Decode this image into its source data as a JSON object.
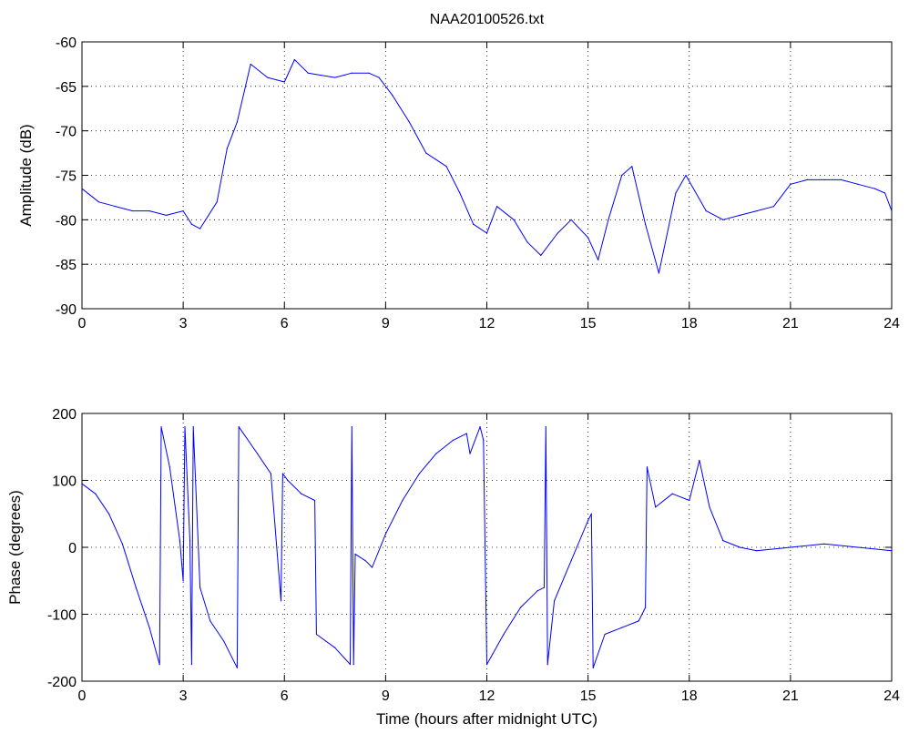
{
  "colors": {
    "series": "#0000ff",
    "axes": "#000000",
    "background": "#ffffff"
  },
  "chart_data": [
    {
      "type": "line",
      "title": "NAA20100526.txt",
      "xlabel": "",
      "ylabel": "Amplitude (dB)",
      "xlim": [
        0,
        24
      ],
      "ylim": [
        -90,
        -60
      ],
      "xticks": [
        0,
        3,
        6,
        9,
        12,
        15,
        18,
        21,
        24
      ],
      "yticks": [
        -90,
        -85,
        -80,
        -75,
        -70,
        -65,
        -60
      ],
      "grid": true,
      "x": [
        0,
        0.5,
        1,
        1.5,
        2,
        2.5,
        3,
        3.25,
        3.5,
        4,
        4.3,
        4.6,
        5,
        5.5,
        6,
        6.3,
        6.7,
        7.5,
        8,
        8.5,
        8.8,
        9.2,
        9.7,
        10.2,
        10.8,
        11.2,
        11.6,
        12,
        12.3,
        12.8,
        13.2,
        13.6,
        14.1,
        14.5,
        15,
        15.3,
        15.6,
        16,
        16.3,
        16.7,
        17.1,
        17.6,
        17.9,
        18.5,
        19,
        19.5,
        20,
        20.5,
        21,
        21.5,
        22,
        22.5,
        23,
        23.5,
        23.8,
        24
      ],
      "values": [
        -76.5,
        -78,
        -78.5,
        -79,
        -79,
        -79.5,
        -79,
        -80.5,
        -81,
        -78,
        -72,
        -69,
        -62.5,
        -64,
        -64.5,
        -62,
        -63.5,
        -64,
        -63.5,
        -63.5,
        -64,
        -66,
        -69,
        -72.5,
        -74,
        -77,
        -80.5,
        -81.5,
        -78.5,
        -80,
        -82.5,
        -84,
        -81.5,
        -80,
        -82,
        -84.5,
        -80,
        -75,
        -74,
        -80.5,
        -86,
        -77,
        -75,
        -79,
        -80,
        -79.5,
        -79,
        -78.5,
        -76,
        -75.5,
        -75.5,
        -75.5,
        -76,
        -76.5,
        -77,
        -79
      ]
    },
    {
      "type": "line",
      "title": "",
      "xlabel": "Time (hours after midnight UTC)",
      "ylabel": "Phase (degrees)",
      "xlim": [
        0,
        24
      ],
      "ylim": [
        -200,
        200
      ],
      "xticks": [
        0,
        3,
        6,
        9,
        12,
        15,
        18,
        21,
        24
      ],
      "yticks": [
        -200,
        -100,
        0,
        100,
        200
      ],
      "grid": true,
      "x": [
        0,
        0.4,
        0.8,
        1.2,
        1.6,
        2,
        2.3,
        2.35,
        2.6,
        2.9,
        3.0,
        3.05,
        3.2,
        3.25,
        3.3,
        3.5,
        3.8,
        4.2,
        4.6,
        4.65,
        5.2,
        5.6,
        5.9,
        5.95,
        6.1,
        6.5,
        6.9,
        6.95,
        7.5,
        7.95,
        8.0,
        8.05,
        8.1,
        8.4,
        8.6,
        9.0,
        9.5,
        10.0,
        10.5,
        11.0,
        11.4,
        11.5,
        11.8,
        11.9,
        12.0,
        12.5,
        13.0,
        13.5,
        13.7,
        13.75,
        13.8,
        14.0,
        14.5,
        15.0,
        15.1,
        15.15,
        15.5,
        16.0,
        16.5,
        16.7,
        16.75,
        17.0,
        17.5,
        18.0,
        18.3,
        18.6,
        19.0,
        19.5,
        20.0,
        21.0,
        22.0,
        23.0,
        24.0
      ],
      "values": [
        95,
        80,
        50,
        5,
        -60,
        -120,
        -175,
        180,
        120,
        10,
        -50,
        180,
        10,
        -175,
        180,
        -60,
        -110,
        -140,
        -180,
        180,
        140,
        110,
        -80,
        110,
        100,
        80,
        70,
        -130,
        -150,
        -175,
        180,
        -175,
        -10,
        -20,
        -30,
        20,
        70,
        110,
        140,
        160,
        170,
        140,
        180,
        160,
        -175,
        -130,
        -90,
        -65,
        -60,
        180,
        -175,
        -80,
        -20,
        40,
        50,
        -180,
        -130,
        -120,
        -110,
        -90,
        120,
        60,
        80,
        70,
        130,
        60,
        10,
        0,
        -5,
        0,
        5,
        0,
        -5
      ]
    }
  ]
}
